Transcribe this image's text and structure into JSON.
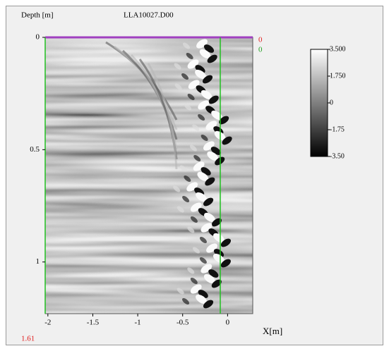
{
  "chart_data": {
    "type": "radargram",
    "title": "LLA10027.D00",
    "y_label": "Depth [m]",
    "x_label": "X[m]",
    "xlim": [
      -2.03,
      0.28
    ],
    "xticks": [
      -2,
      -1.5,
      -1,
      -0.5,
      0
    ],
    "ylim": [
      0,
      1.23
    ],
    "yticks": [
      0,
      0.5,
      1
    ],
    "clim": [
      -3.5,
      3.5
    ],
    "cticks": [
      {
        "value": 3.5,
        "label": "3.500"
      },
      {
        "value": 1.75,
        "label": "1.750"
      },
      0,
      -1.75,
      {
        "value": -3.5,
        "label": "-3.50"
      }
    ],
    "marker_red_top": 0,
    "marker_green_top": 0,
    "marker_red_bottom": 1.61
  }
}
